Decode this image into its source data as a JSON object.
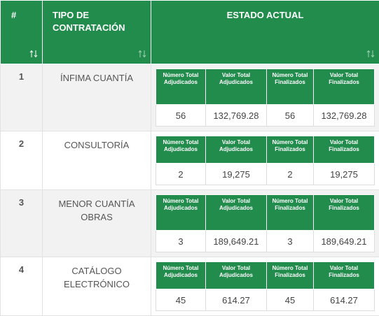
{
  "header": [
    "#",
    "TIPO DE CONTRATACIÓN",
    "ESTADO ACTUAL"
  ],
  "subheaders": [
    "Número Total Adjudicados",
    "Valor Total Adjudicados",
    "Número Total Finalizados",
    "Valor Total Finalizados"
  ],
  "table": {
    "rows": [
      {
        "number": "1",
        "type": "ÍNFIMA CUANTÍA",
        "values": [
          "56",
          "132,769.28",
          "56",
          "132,769.28"
        ]
      },
      {
        "number": "2",
        "type": "CONSULTORÍA",
        "values": [
          "2",
          "19,275",
          "2",
          "19,275"
        ]
      },
      {
        "number": "3",
        "type": "MENOR CUANTÍA OBRAS",
        "values": [
          "3",
          "189,649.21",
          "3",
          "189,649.21"
        ]
      },
      {
        "number": "4",
        "type": "CATÁLOGO ELECTRÓNICO",
        "values": [
          "45",
          "614.27",
          "45",
          "614.27"
        ]
      }
    ]
  }
}
